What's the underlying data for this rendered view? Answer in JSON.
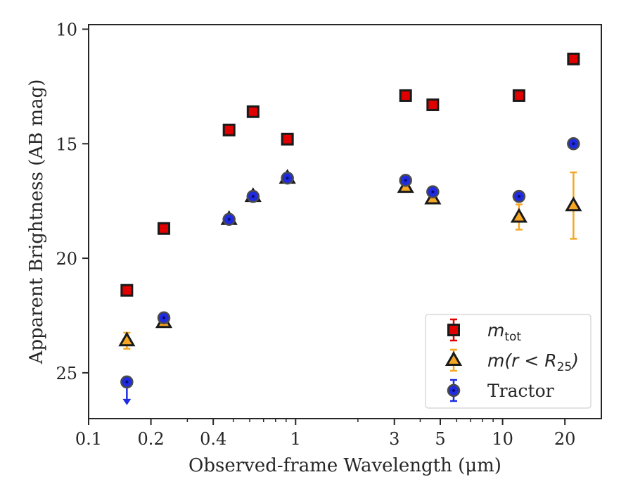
{
  "chart_data": {
    "type": "scatter",
    "title": "",
    "xlabel": "Observed-frame Wavelength (μm)",
    "ylabel": "Apparent Brightness (AB mag)",
    "xscale": "log",
    "xlim": [
      0.1,
      30
    ],
    "ylim": [
      27,
      9.8
    ],
    "y_inverted": true,
    "x_ticks": [
      0.1,
      0.2,
      0.4,
      1,
      3,
      5,
      10,
      20
    ],
    "x_tick_labels": [
      "0.1",
      "0.2",
      "0.4",
      "1",
      "3",
      "5",
      "10",
      "20"
    ],
    "y_ticks": [
      10,
      15,
      20,
      25
    ],
    "y_tick_labels": [
      "10",
      "15",
      "20",
      "25"
    ],
    "grid": false,
    "legend_position": "lower-right",
    "series": [
      {
        "name": "m_tot",
        "legend_label": "m",
        "legend_subscript": "tot",
        "marker": "square",
        "face_color": "#e00000",
        "edge_color": "#1a1a1a",
        "error_color": "#e00000",
        "points": [
          {
            "x": 0.153,
            "y": 21.4
          },
          {
            "x": 0.231,
            "y": 18.7
          },
          {
            "x": 0.477,
            "y": 14.4
          },
          {
            "x": 0.623,
            "y": 13.6
          },
          {
            "x": 0.913,
            "y": 14.8
          },
          {
            "x": 3.4,
            "y": 12.9
          },
          {
            "x": 4.6,
            "y": 13.3
          },
          {
            "x": 12.0,
            "y": 12.9
          },
          {
            "x": 22.0,
            "y": 11.3
          }
        ]
      },
      {
        "name": "m(r < R_25)",
        "legend_label": "m(r < R",
        "legend_subscript": "25",
        "legend_suffix": ")",
        "marker": "triangle",
        "face_color": "#f5a623",
        "edge_color": "#1a1a1a",
        "error_color": "#f5a623",
        "points": [
          {
            "x": 0.153,
            "y": 23.6,
            "err": 0.35
          },
          {
            "x": 0.231,
            "y": 22.8,
            "err": 0.12
          },
          {
            "x": 0.477,
            "y": 18.3,
            "err": 0.05
          },
          {
            "x": 0.623,
            "y": 17.3,
            "err": 0.05
          },
          {
            "x": 0.913,
            "y": 16.5,
            "err": 0.05
          },
          {
            "x": 3.4,
            "y": 16.9,
            "err": 0.05
          },
          {
            "x": 4.6,
            "y": 17.4,
            "err": 0.05
          },
          {
            "x": 12.0,
            "y": 18.2,
            "err": 0.55
          },
          {
            "x": 22.0,
            "y": 17.7,
            "err": 1.45
          }
        ]
      },
      {
        "name": "Tractor",
        "legend_label": "Tractor",
        "marker": "circle",
        "face_color": "#1f2be0",
        "edge_color": "#4a4a4a",
        "error_color": "#1f2be0",
        "points": [
          {
            "x": 0.153,
            "y": 25.4,
            "upper_limit": true
          },
          {
            "x": 0.231,
            "y": 22.6
          },
          {
            "x": 0.477,
            "y": 18.3
          },
          {
            "x": 0.623,
            "y": 17.3
          },
          {
            "x": 0.913,
            "y": 16.5
          },
          {
            "x": 3.4,
            "y": 16.6
          },
          {
            "x": 4.6,
            "y": 17.1
          },
          {
            "x": 12.0,
            "y": 17.3
          },
          {
            "x": 22.0,
            "y": 15.0
          }
        ]
      }
    ]
  }
}
